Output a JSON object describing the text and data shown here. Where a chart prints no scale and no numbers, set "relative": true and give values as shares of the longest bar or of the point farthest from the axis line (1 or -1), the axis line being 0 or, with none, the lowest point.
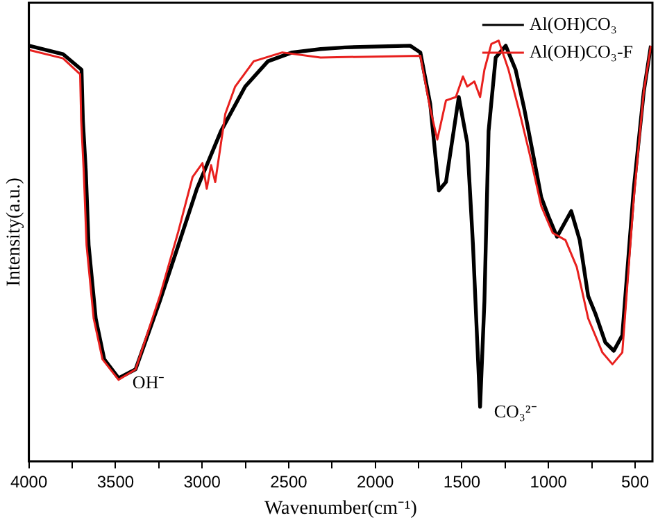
{
  "chart_data": {
    "type": "line",
    "relative": true,
    "xlabel": "Wavenumber(cm⁻¹)",
    "ylabel": "Intensity(a.u.)",
    "xlim": [
      4000,
      400
    ],
    "xticks": [
      4000,
      {
        "value": 3750,
        "label": null
      },
      3500,
      {
        "value": 3250,
        "label": null
      },
      3000,
      {
        "value": 2750,
        "label": null
      },
      2500,
      {
        "value": 2250,
        "label": null
      },
      2000,
      {
        "value": 1750,
        "label": null
      },
      1500,
      {
        "value": 1250,
        "label": null
      },
      1000,
      {
        "value": 750,
        "label": null
      },
      500
    ],
    "legend": "top right",
    "grid": false,
    "marker": "none",
    "line_style": "solid",
    "annotations": [
      {
        "text": "OH⁻",
        "x": 3482,
        "y": 0.198
      },
      {
        "text": "CO₃²⁻",
        "x": 1395,
        "y": 0.13
      }
    ],
    "series": [
      {
        "name": "Al(OH)CO₃",
        "color": "#000000",
        "x": [
          4000,
          3803,
          3696,
          3688,
          3671,
          3655,
          3614,
          3565,
          3482,
          3384,
          3244,
          3137,
          3030,
          2891,
          2751,
          2620,
          2480,
          2316,
          2176,
          1798,
          1740,
          1683,
          1633,
          1592,
          1518,
          1469,
          1436,
          1395,
          1370,
          1346,
          1305,
          1247,
          1190,
          1140,
          1083,
          1042,
          1001,
          951,
          869,
          820,
          771,
          730,
          672,
          623,
          574,
          508,
          450,
          409
        ],
        "values": [
          0.988,
          0.968,
          0.931,
          0.81,
          0.688,
          0.514,
          0.34,
          0.243,
          0.198,
          0.219,
          0.381,
          0.514,
          0.648,
          0.785,
          0.891,
          0.951,
          0.972,
          0.98,
          0.984,
          0.988,
          0.972,
          0.85,
          0.644,
          0.664,
          0.866,
          0.757,
          0.514,
          0.13,
          0.381,
          0.785,
          0.96,
          0.988,
          0.931,
          0.838,
          0.717,
          0.628,
          0.583,
          0.534,
          0.595,
          0.526,
          0.393,
          0.352,
          0.283,
          0.263,
          0.3,
          0.648,
          0.879,
          0.988
        ]
      },
      {
        "name": "Al(OH)CO₃-F",
        "color": "#e8201e",
        "x": [
          4000,
          3803,
          3704,
          3698,
          3683,
          3667,
          3626,
          3575,
          3482,
          3384,
          3244,
          3137,
          3055,
          2998,
          2973,
          2948,
          2924,
          2866,
          2809,
          2702,
          2537,
          2316,
          1740,
          1683,
          1642,
          1592,
          1535,
          1494,
          1469,
          1428,
          1395,
          1370,
          1330,
          1288,
          1231,
          1165,
          1108,
          1042,
          976,
          902,
          837,
          771,
          689,
          631,
          574,
          508,
          450,
          409
        ],
        "values": [
          0.978,
          0.958,
          0.92,
          0.81,
          0.688,
          0.514,
          0.34,
          0.243,
          0.194,
          0.219,
          0.393,
          0.547,
          0.676,
          0.709,
          0.648,
          0.704,
          0.664,
          0.826,
          0.891,
          0.951,
          0.972,
          0.96,
          0.964,
          0.838,
          0.765,
          0.858,
          0.866,
          0.915,
          0.891,
          0.903,
          0.866,
          0.931,
          0.992,
          1.0,
          0.931,
          0.826,
          0.729,
          0.607,
          0.543,
          0.526,
          0.462,
          0.34,
          0.259,
          0.231,
          0.259,
          0.623,
          0.879,
          0.988
        ]
      }
    ]
  }
}
